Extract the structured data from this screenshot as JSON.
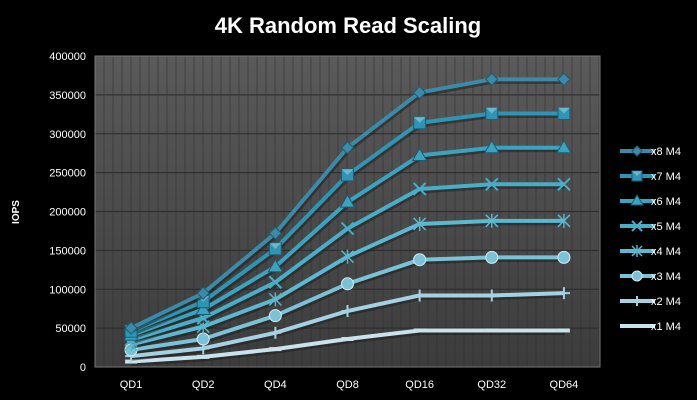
{
  "chart_data": {
    "type": "line",
    "title": "4K Random Read Scaling",
    "xlabel": "",
    "ylabel": "IOPS",
    "categories": [
      "QD1",
      "QD2",
      "QD4",
      "QD8",
      "QD16",
      "QD32",
      "QD64"
    ],
    "ylim": [
      0,
      400000
    ],
    "yticks": [
      0,
      50000,
      100000,
      150000,
      200000,
      250000,
      300000,
      350000,
      400000
    ],
    "grid": true,
    "legend_position": "right",
    "series": [
      {
        "name": "x8 M4",
        "marker": "diamond",
        "color": "#3a8aa8",
        "values": [
          50000,
          95000,
          172000,
          282000,
          353000,
          370000,
          370000
        ]
      },
      {
        "name": "x7 M4",
        "marker": "square",
        "color": "#2f95b4",
        "values": [
          46000,
          84000,
          152000,
          247000,
          314000,
          326000,
          326000
        ]
      },
      {
        "name": "x6 M4",
        "marker": "triangle",
        "color": "#3aa4c0",
        "values": [
          41000,
          74000,
          129000,
          212000,
          272000,
          282000,
          282000
        ]
      },
      {
        "name": "x5 M4",
        "marker": "x",
        "color": "#48aec8",
        "values": [
          35000,
          63000,
          109000,
          178000,
          229000,
          235000,
          235000
        ]
      },
      {
        "name": "x4 M4",
        "marker": "star",
        "color": "#5ab8cf",
        "values": [
          29000,
          52000,
          87000,
          142000,
          184000,
          188000,
          188000
        ]
      },
      {
        "name": "x3 M4",
        "marker": "circle",
        "color": "#7ac2d6",
        "values": [
          22000,
          36000,
          66000,
          107000,
          138000,
          141000,
          141000
        ]
      },
      {
        "name": "x2 M4",
        "marker": "plus",
        "color": "#a4d2e2",
        "values": [
          14000,
          24000,
          44000,
          72000,
          92000,
          92000,
          95000
        ]
      },
      {
        "name": "x1 M4",
        "marker": "dash",
        "color": "#c9e2ec",
        "values": [
          7000,
          13000,
          23000,
          36000,
          47000,
          47000,
          47000
        ]
      }
    ]
  }
}
